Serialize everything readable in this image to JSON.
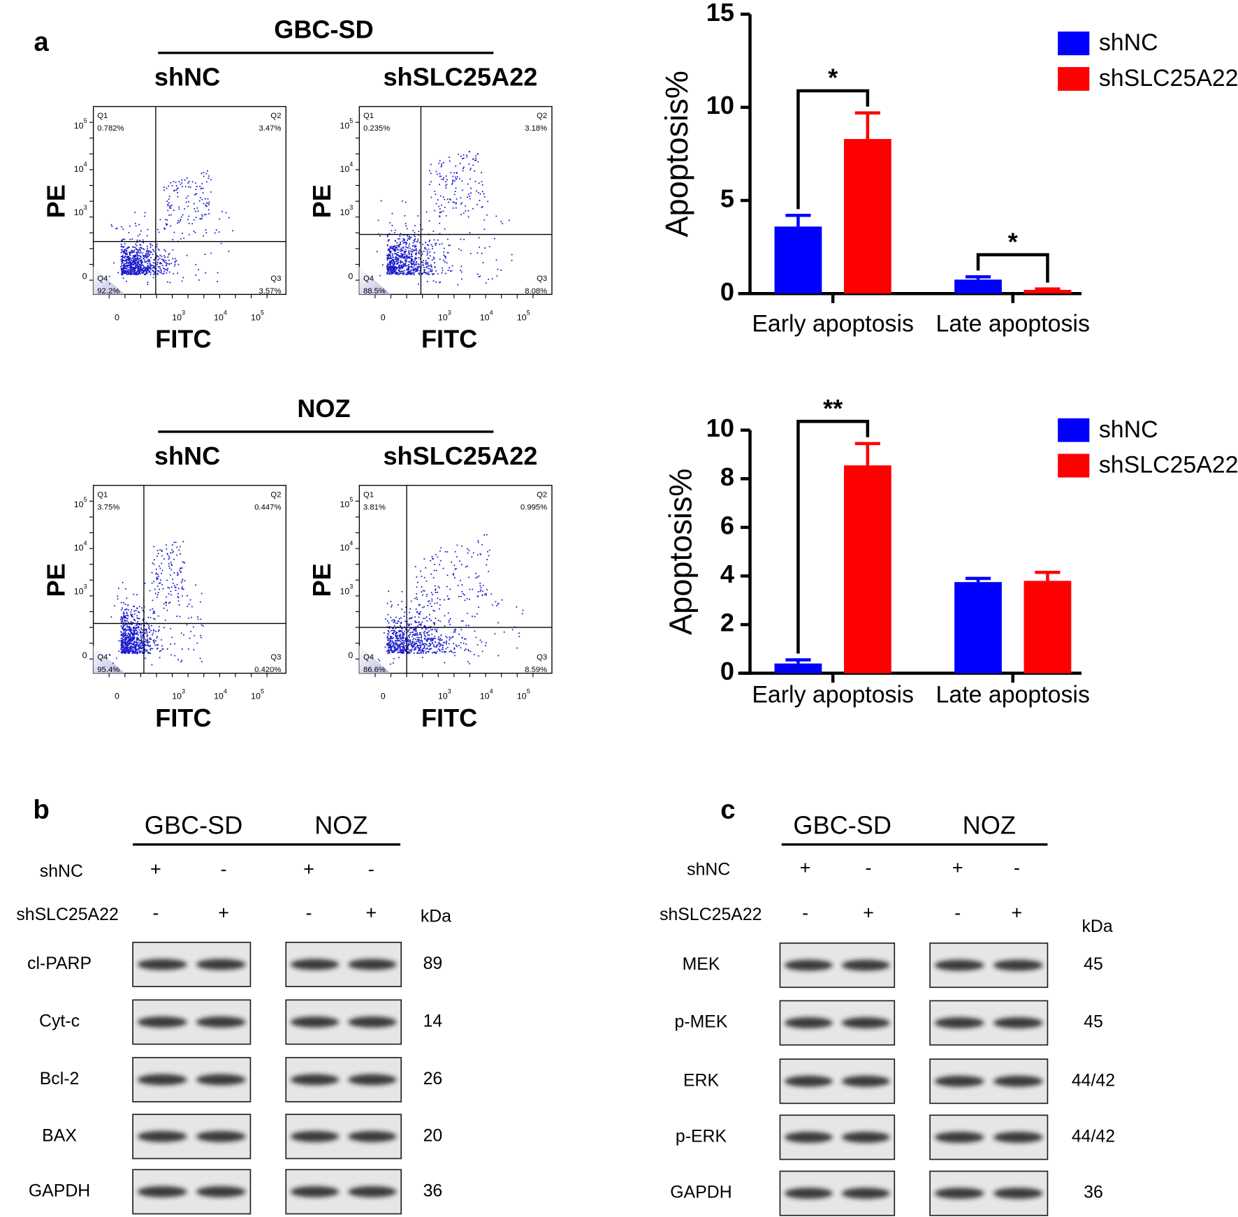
{
  "panel_labels": [
    "a",
    "b",
    "c"
  ],
  "flow_axis_ticks": {
    "y": [
      {
        "base": "10",
        "exp": "5"
      },
      {
        "base": "10",
        "exp": "4"
      },
      {
        "base": "10",
        "exp": "3"
      },
      {
        "base": "0"
      }
    ],
    "x": [
      {
        "base": "0"
      },
      {
        "base": "10",
        "exp": "3"
      },
      {
        "base": "10",
        "exp": "4"
      },
      {
        "base": "10",
        "exp": "5"
      }
    ]
  },
  "flow_cytometry": [
    {
      "title": "GBC-SD",
      "y_axis_label": "PE",
      "x_axis_label": "FITC",
      "samples": [
        {
          "name": "shNC",
          "quadrants": [
            {
              "name": "Q1",
              "percent": "0.782%"
            },
            {
              "name": "Q2",
              "percent": "3.47%"
            },
            {
              "name": "Q3",
              "percent": "3.57%"
            },
            {
              "name": "Q4",
              "percent": "92.2%"
            }
          ]
        },
        {
          "name": "shSLC25A22",
          "quadrants": [
            {
              "name": "Q1",
              "percent": "0.235%"
            },
            {
              "name": "Q2",
              "percent": "3.18%"
            },
            {
              "name": "Q3",
              "percent": "8.08%"
            },
            {
              "name": "Q4",
              "percent": "88.5%"
            }
          ]
        }
      ]
    },
    {
      "title": "NOZ",
      "y_axis_label": "PE",
      "x_axis_label": "FITC",
      "samples": [
        {
          "name": "shNC",
          "quadrants": [
            {
              "name": "Q1",
              "percent": "3.75%"
            },
            {
              "name": "Q2",
              "percent": "0.447%"
            },
            {
              "name": "Q3",
              "percent": "0.420%"
            },
            {
              "name": "Q4",
              "percent": "95.4%"
            }
          ]
        },
        {
          "name": "shSLC25A22",
          "quadrants": [
            {
              "name": "Q1",
              "percent": "3.81%"
            },
            {
              "name": "Q2",
              "percent": "0.995%"
            },
            {
              "name": "Q3",
              "percent": "8.59%"
            },
            {
              "name": "Q4",
              "percent": "86.6%"
            }
          ]
        }
      ]
    }
  ],
  "chart_data": [
    {
      "type": "bar",
      "y_label": "Apoptosis%",
      "categories": [
        "Early apoptosis",
        "Late apoptosis"
      ],
      "series": [
        {
          "name": "shNC",
          "color": "#0000ff",
          "values": [
            3.6,
            0.75
          ],
          "errors": [
            0.6,
            0.15
          ]
        },
        {
          "name": "shSLC25A22",
          "color": "#ff0000",
          "values": [
            8.3,
            0.2
          ],
          "errors": [
            1.4,
            0.05
          ]
        }
      ],
      "significance": [
        "*",
        "*"
      ],
      "ylim": [
        0,
        15
      ],
      "yticks": [
        0,
        5,
        10,
        15
      ],
      "legend": "top-right"
    },
    {
      "type": "bar",
      "y_label": "Apoptosis%",
      "categories": [
        "Early apoptosis",
        "Late apoptosis"
      ],
      "series": [
        {
          "name": "shNC",
          "color": "#0000ff",
          "values": [
            0.4,
            3.75
          ],
          "errors": [
            0.15,
            0.15
          ]
        },
        {
          "name": "shSLC25A22",
          "color": "#ff0000",
          "values": [
            8.55,
            3.8
          ],
          "errors": [
            0.9,
            0.35
          ]
        }
      ],
      "significance": [
        "**",
        null
      ],
      "ylim": [
        0,
        10
      ],
      "yticks": [
        0,
        2,
        4,
        6,
        8,
        10
      ],
      "legend": "top-right"
    }
  ],
  "western_blots": [
    {
      "cell_lines": [
        "GBC-SD",
        "NOZ"
      ],
      "rows": [
        {
          "label": "shNC",
          "signs": [
            "+",
            "-",
            "+",
            "-"
          ]
        },
        {
          "label": "shSLC25A22",
          "signs": [
            "-",
            "+",
            "-",
            "+"
          ]
        }
      ],
      "unit": "kDa",
      "proteins": [
        {
          "name": "cl-PARP",
          "kda": "89"
        },
        {
          "name": "Cyt-c",
          "kda": "14"
        },
        {
          "name": "Bcl-2",
          "kda": "26"
        },
        {
          "name": "BAX",
          "kda": "20"
        },
        {
          "name": "GAPDH",
          "kda": "36"
        }
      ]
    },
    {
      "cell_lines": [
        "GBC-SD",
        "NOZ"
      ],
      "rows": [
        {
          "label": "shNC",
          "signs": [
            "+",
            "-",
            "+",
            "-"
          ]
        },
        {
          "label": "shSLC25A22",
          "signs": [
            "-",
            "+",
            "-",
            "+"
          ]
        }
      ],
      "unit": "kDa",
      "proteins": [
        {
          "name": "MEK",
          "kda": "45"
        },
        {
          "name": "p-MEK",
          "kda": "45"
        },
        {
          "name": "ERK",
          "kda": "44/42"
        },
        {
          "name": "p-ERK",
          "kda": "44/42"
        },
        {
          "name": "GAPDH",
          "kda": "36"
        }
      ]
    }
  ]
}
